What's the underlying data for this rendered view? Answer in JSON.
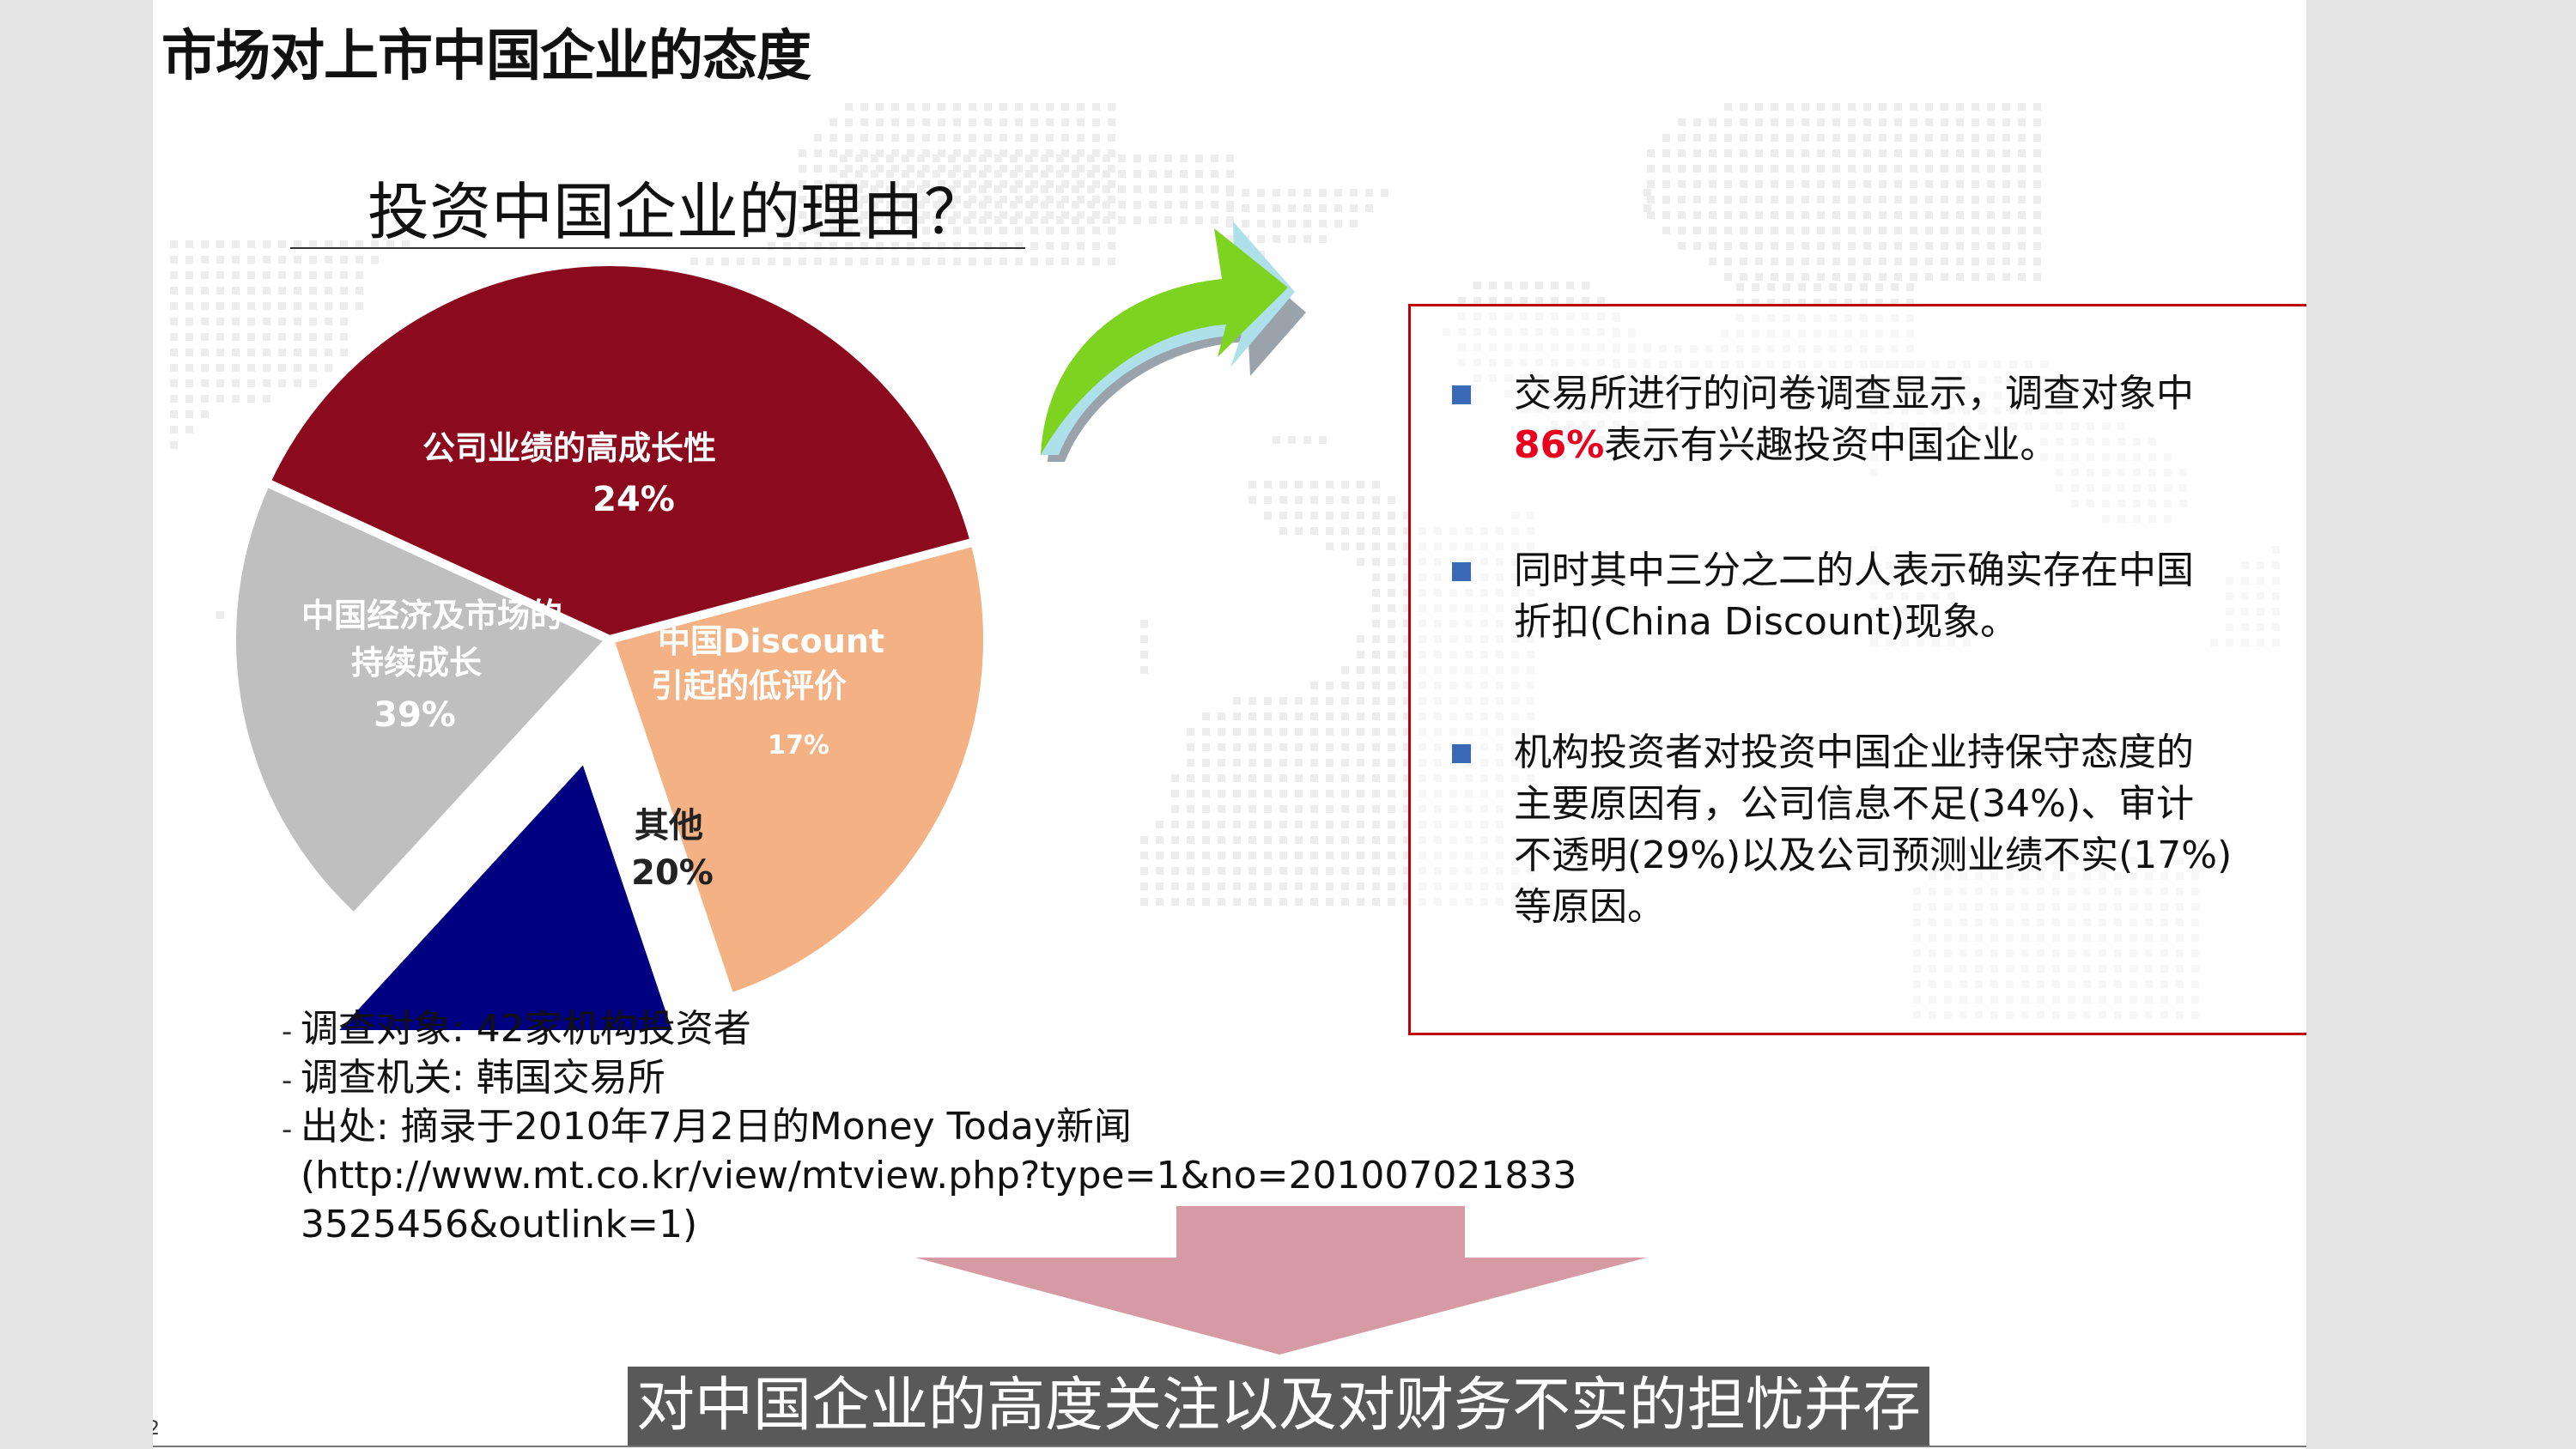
{
  "slide_title": "市场对上市中国企业的态度",
  "chart_data": {
    "type": "pie",
    "title": "投资中国企业的理由？",
    "series": [
      {
        "name": "公司业绩的高成长性",
        "value": 24,
        "label": "24%",
        "color": "#f4b183"
      },
      {
        "name": "中国Discount引起的低评价",
        "value": 17,
        "label": "17%",
        "color": "#000080"
      },
      {
        "name": "其他",
        "value": 20,
        "label": "20%",
        "color": "#bfbfbf"
      },
      {
        "name": "中国经济及市场的持续成长",
        "value": 39,
        "label": "39%",
        "color": "#8b0a1e"
      }
    ]
  },
  "survey_notes": {
    "target": "调查对象: 42家机构投资者",
    "agency": "调查机关: 韩国交易所",
    "source": "出处: 摘录于2010年7月2日的Money Today新闻",
    "source_url_1": "(http://www.mt.co.kr/view/mtview.php?type=1&no=201007021833",
    "source_url_2": "3525456&outlink=1)"
  },
  "findings": {
    "item1_line1": "交易所进行的问卷调查显示，调查对象中",
    "item1_highlight": "86%",
    "item1_rest": "表示有兴趣投资中国企业。",
    "item2_line1": "同时其中三分之二的人表示确实存在中国",
    "item2_line2": "折扣(China Discount)现象。",
    "item3_line1": "机构投资者对投资中国企业持保守态度的",
    "item3_line2": "主要原因有，公司信息不足(34%)、审计",
    "item3_line3": "不透明(29%)以及公司预测业绩不实(17%)",
    "item3_line4": "等原因。"
  },
  "conclusion": "对中国企业的高度关注以及对财务不实的担忧并存",
  "corner_mark": "2",
  "colors": {
    "box_border": "#c00000",
    "bullet": "#3a6ab7",
    "highlight": "#e8001e",
    "curved_arrow": "#7ed321",
    "down_arrow": "#d59aa3",
    "banner": "#595959"
  }
}
